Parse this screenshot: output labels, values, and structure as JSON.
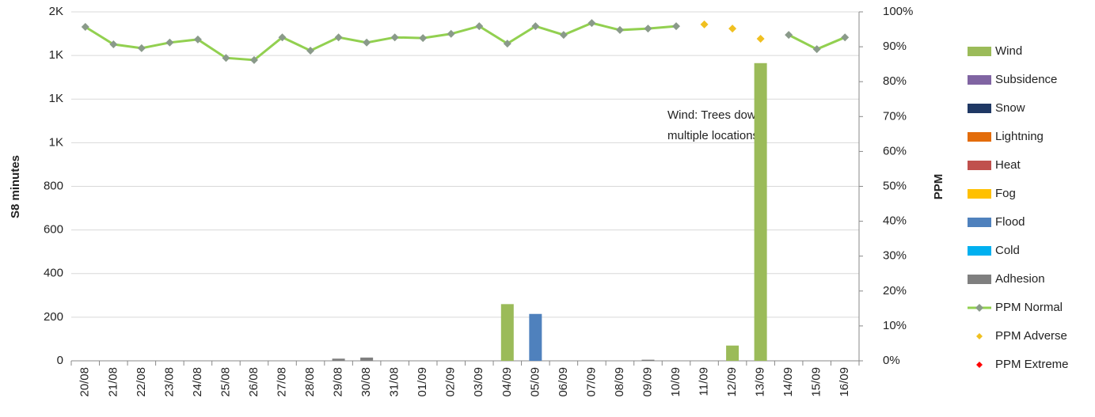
{
  "chart_data": {
    "type": "bar",
    "y_label": "S8 minutes",
    "y2_label": "PPM",
    "annotation": [
      "Wind: Trees down",
      "multiple locations"
    ],
    "categories": [
      "20/08",
      "21/08",
      "22/08",
      "23/08",
      "24/08",
      "25/08",
      "26/08",
      "27/08",
      "28/08",
      "29/08",
      "30/08",
      "31/08",
      "01/09",
      "02/09",
      "03/09",
      "04/09",
      "05/09",
      "06/09",
      "07/09",
      "08/09",
      "09/09",
      "10/09",
      "11/09",
      "12/09",
      "13/09",
      "14/09",
      "15/09",
      "16/09"
    ],
    "ylim": [
      0,
      1600
    ],
    "yticks": [
      0,
      200,
      400,
      600,
      800,
      {
        "value": 1000,
        "label": "1K"
      },
      {
        "value": 1200,
        "label": "1K"
      },
      {
        "value": 1400,
        "label": "1K"
      },
      {
        "value": 1600,
        "label": "2K"
      }
    ],
    "y2lim": [
      0,
      100
    ],
    "y2ticks": [
      {
        "value": 0,
        "label": "0%"
      },
      {
        "value": 10,
        "label": "10%"
      },
      {
        "value": 20,
        "label": "20%"
      },
      {
        "value": 30,
        "label": "30%"
      },
      {
        "value": 40,
        "label": "40%"
      },
      {
        "value": 50,
        "label": "50%"
      },
      {
        "value": 60,
        "label": "60%"
      },
      {
        "value": 70,
        "label": "70%"
      },
      {
        "value": 80,
        "label": "80%"
      },
      {
        "value": 90,
        "label": "90%"
      },
      {
        "value": 100,
        "label": "100%"
      }
    ],
    "grid": true,
    "series": [
      {
        "name": "Wind",
        "type": "bar",
        "color": "#9bbb59",
        "values": [
          null,
          null,
          null,
          null,
          null,
          null,
          null,
          null,
          null,
          null,
          null,
          null,
          null,
          null,
          null,
          260,
          null,
          null,
          null,
          null,
          null,
          null,
          null,
          70,
          1365,
          null,
          null,
          null
        ]
      },
      {
        "name": "Subsidence",
        "type": "bar",
        "color": "#8064a2",
        "values": [
          null,
          null,
          null,
          null,
          null,
          null,
          null,
          null,
          null,
          null,
          null,
          null,
          null,
          null,
          null,
          null,
          null,
          null,
          null,
          null,
          null,
          null,
          null,
          null,
          null,
          null,
          null,
          null
        ]
      },
      {
        "name": "Snow",
        "type": "bar",
        "color": "#1f3864",
        "values": [
          null,
          null,
          null,
          null,
          null,
          null,
          null,
          null,
          null,
          null,
          null,
          null,
          null,
          null,
          null,
          null,
          null,
          null,
          null,
          null,
          null,
          null,
          null,
          null,
          null,
          null,
          null,
          null
        ]
      },
      {
        "name": "Lightning",
        "type": "bar",
        "color": "#e36c09",
        "values": [
          null,
          null,
          null,
          null,
          null,
          null,
          null,
          null,
          null,
          null,
          null,
          null,
          null,
          null,
          null,
          null,
          null,
          null,
          null,
          null,
          null,
          null,
          null,
          null,
          null,
          null,
          null,
          null
        ]
      },
      {
        "name": "Heat",
        "type": "bar",
        "color": "#c0504d",
        "values": [
          null,
          null,
          null,
          null,
          null,
          null,
          null,
          null,
          null,
          null,
          null,
          null,
          null,
          null,
          null,
          null,
          null,
          null,
          null,
          null,
          null,
          null,
          null,
          null,
          null,
          null,
          null,
          null
        ]
      },
      {
        "name": "Fog",
        "type": "bar",
        "color": "#ffc000",
        "values": [
          null,
          null,
          null,
          null,
          null,
          null,
          null,
          null,
          null,
          null,
          null,
          null,
          null,
          null,
          null,
          null,
          null,
          null,
          null,
          null,
          null,
          null,
          null,
          null,
          null,
          null,
          null,
          null
        ]
      },
      {
        "name": "Flood",
        "type": "bar",
        "color": "#4f81bd",
        "values": [
          null,
          null,
          null,
          null,
          null,
          null,
          null,
          null,
          null,
          null,
          null,
          null,
          null,
          null,
          null,
          null,
          215,
          null,
          null,
          null,
          null,
          null,
          null,
          null,
          null,
          null,
          null,
          null
        ]
      },
      {
        "name": "Cold",
        "type": "bar",
        "color": "#00b0f0",
        "values": [
          null,
          null,
          null,
          null,
          null,
          null,
          null,
          null,
          null,
          null,
          null,
          null,
          null,
          null,
          null,
          null,
          null,
          null,
          null,
          null,
          null,
          null,
          null,
          null,
          null,
          null,
          null,
          null
        ]
      },
      {
        "name": "Adhesion",
        "type": "bar",
        "color": "#7f7f7f",
        "values": [
          null,
          null,
          null,
          null,
          null,
          null,
          null,
          null,
          null,
          10,
          15,
          null,
          null,
          null,
          null,
          null,
          null,
          null,
          null,
          null,
          5,
          null,
          null,
          null,
          null,
          null,
          null,
          null
        ]
      },
      {
        "name": "PPM Normal",
        "type": "line",
        "axis": "y2",
        "color": "#92d050",
        "marker_color": "#8a9a8a",
        "values": [
          95.7,
          90.7,
          89.6,
          91.2,
          92.1,
          86.8,
          86.2,
          92.7,
          88.9,
          92.7,
          91.2,
          92.7,
          92.5,
          93.7,
          95.9,
          90.9,
          95.9,
          93.4,
          96.8,
          94.8,
          95.2,
          95.9,
          null,
          null,
          null,
          93.4,
          89.3,
          92.7
        ]
      },
      {
        "name": "PPM Adverse",
        "type": "scatter",
        "axis": "y2",
        "color": "#f0c020",
        "values": [
          null,
          null,
          null,
          null,
          null,
          null,
          null,
          null,
          null,
          null,
          null,
          null,
          null,
          null,
          null,
          null,
          null,
          null,
          null,
          null,
          null,
          null,
          96.4,
          95.2,
          92.3,
          null,
          null,
          null
        ]
      },
      {
        "name": "PPM Extreme",
        "type": "scatter",
        "axis": "y2",
        "color": "#ff0000",
        "values": [
          null,
          null,
          null,
          null,
          null,
          null,
          null,
          null,
          null,
          null,
          null,
          null,
          null,
          null,
          null,
          null,
          null,
          null,
          null,
          null,
          null,
          null,
          null,
          null,
          null,
          null,
          null,
          null
        ]
      }
    ]
  }
}
